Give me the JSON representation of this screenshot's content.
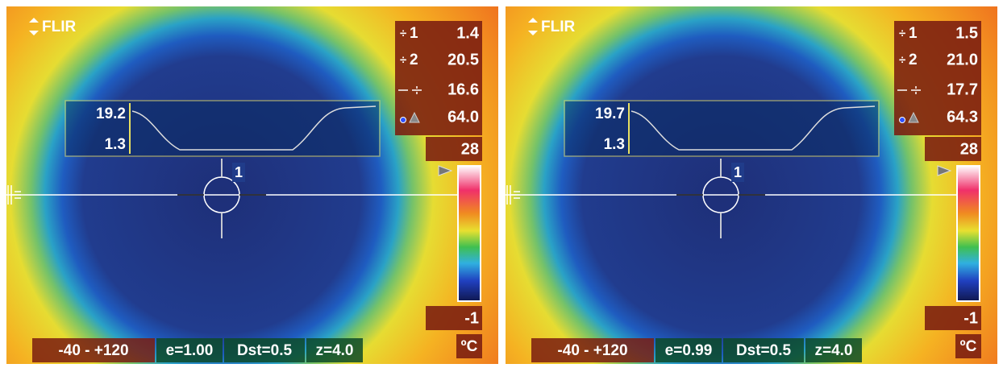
{
  "panels": [
    {
      "logo": "FLIR",
      "readouts": [
        {
          "label": "1",
          "value": "1.4"
        },
        {
          "label": "2",
          "value": "20.5"
        },
        {
          "value": "16.6"
        },
        {
          "value": "64.0"
        }
      ],
      "scale_max": "28",
      "scale_min": "-1",
      "unit": "ºC",
      "profile": {
        "max": "19.2",
        "min": "1.3"
      },
      "spot_label": "1",
      "status": [
        "-40 -  +120",
        "e=1.00",
        "Dst=0.5",
        "z=4.0"
      ]
    },
    {
      "logo": "FLIR",
      "readouts": [
        {
          "label": "1",
          "value": "1.5"
        },
        {
          "label": "2",
          "value": "21.0"
        },
        {
          "value": "17.7"
        },
        {
          "value": "64.3"
        }
      ],
      "scale_max": "28",
      "scale_min": "-1",
      "unit": "ºC",
      "profile": {
        "max": "19.7",
        "min": "1.3"
      },
      "spot_label": "1",
      "status": [
        "-40 -  +120",
        "e=0.99",
        "Dst=0.5",
        "z=4.0"
      ]
    }
  ]
}
